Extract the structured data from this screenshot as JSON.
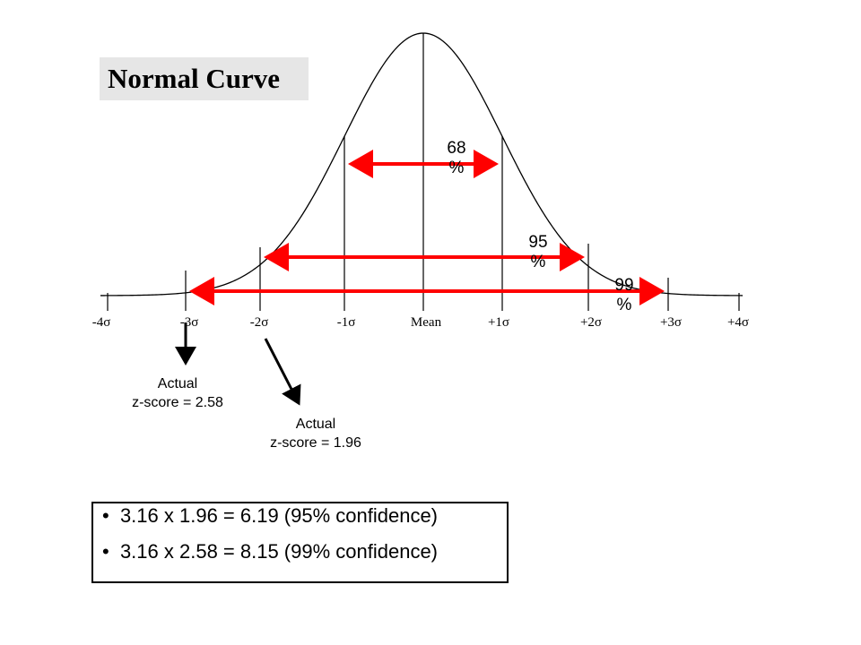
{
  "title": "Normal Curve",
  "percent_labels": [
    {
      "value": "68",
      "unit": "%"
    },
    {
      "value": "95",
      "unit": "%"
    },
    {
      "value": "99",
      "unit": "%"
    }
  ],
  "axis_ticks": [
    "-4σ",
    "-3σ",
    "-2σ",
    "-1σ",
    "Mean",
    "+1σ",
    "+2σ",
    "+3σ",
    "+4σ"
  ],
  "annotations": [
    {
      "line1": "Actual",
      "line2": "z-score = 2.58"
    },
    {
      "line1": "Actual",
      "line2": "z-score = 1.96"
    }
  ],
  "bullets": [
    "3.16 x 1.96 = 6.19 (95% confidence)",
    "3.16 x 2.58 = 8.15 (99% confidence)"
  ],
  "colors": {
    "arrow": "#ff0000",
    "curve": "#000000",
    "title_bg": "#e6e6e6"
  }
}
